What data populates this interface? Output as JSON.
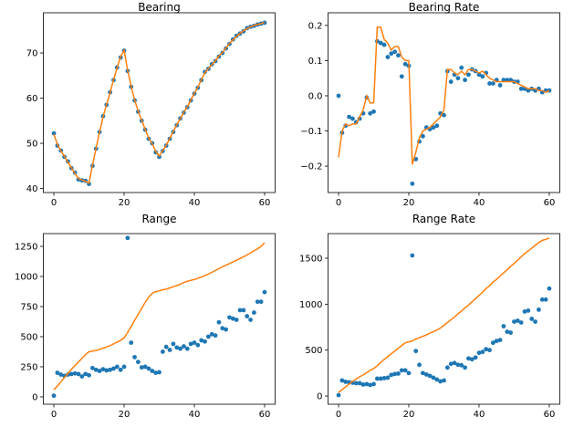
{
  "chart_data": [
    {
      "type": "scatter_line",
      "title": "Bearing",
      "x": [
        0,
        1,
        2,
        3,
        4,
        5,
        6,
        7,
        8,
        9,
        10,
        11,
        12,
        13,
        14,
        15,
        16,
        17,
        18,
        19,
        20,
        21,
        22,
        23,
        24,
        25,
        26,
        27,
        28,
        29,
        30,
        31,
        32,
        33,
        34,
        35,
        36,
        37,
        38,
        39,
        40,
        41,
        42,
        43,
        44,
        45,
        46,
        47,
        48,
        49,
        50,
        51,
        52,
        53,
        54,
        55,
        56,
        57,
        58,
        59,
        60
      ],
      "series": [
        {
          "kind": "scatter",
          "color": "#1f77b4",
          "values": [
            52.2,
            49.5,
            48.4,
            47,
            46,
            44.5,
            43.5,
            42,
            41.8,
            41.7,
            41,
            45,
            48.8,
            52.5,
            56,
            58.5,
            61.3,
            64,
            66.8,
            69,
            70.5,
            66,
            62.5,
            59.5,
            57,
            55,
            53,
            51,
            50,
            48,
            47,
            48.3,
            49.5,
            51,
            52.5,
            54,
            55.5,
            56.8,
            58,
            59.5,
            61,
            62.3,
            64,
            65.8,
            66.5,
            67.5,
            68.2,
            69.2,
            70,
            71,
            72,
            73,
            73.8,
            74.3,
            74.8,
            75.5,
            75.8,
            76,
            76.3,
            76.5,
            76.7
          ]
        },
        {
          "kind": "line",
          "color": "#ff7f0e",
          "values": [
            52,
            49.8,
            48.3,
            47.1,
            45.8,
            44.6,
            43.3,
            42.2,
            41.9,
            41.6,
            41.2,
            45.2,
            48.9,
            52.4,
            55.8,
            58.6,
            61.2,
            64.1,
            66.7,
            69.2,
            70.6,
            66.2,
            62.6,
            59.6,
            57.1,
            55.1,
            53.1,
            51.2,
            49.9,
            48.2,
            47.2,
            48.4,
            49.6,
            51.1,
            52.6,
            54.1,
            55.4,
            56.9,
            58.1,
            59.6,
            61.1,
            62.4,
            64.1,
            65.6,
            66.6,
            67.4,
            68.3,
            69.3,
            70.1,
            71.1,
            72.1,
            72.9,
            73.7,
            74.3,
            74.9,
            75.4,
            75.8,
            76.1,
            76.3,
            76.5,
            76.8
          ]
        }
      ],
      "xlim": [
        -3,
        63
      ],
      "xticks": [
        0,
        20,
        40,
        60
      ],
      "ylim": [
        39.1,
        78.9
      ],
      "yticks": [
        40,
        50,
        60,
        70
      ]
    },
    {
      "type": "scatter_line",
      "title": "Bearing Rate",
      "x": [
        0,
        1,
        2,
        3,
        4,
        5,
        6,
        7,
        8,
        9,
        10,
        11,
        12,
        13,
        14,
        15,
        16,
        17,
        18,
        19,
        20,
        21,
        22,
        23,
        24,
        25,
        26,
        27,
        28,
        29,
        30,
        31,
        32,
        33,
        34,
        35,
        36,
        37,
        38,
        39,
        40,
        41,
        42,
        43,
        44,
        45,
        46,
        47,
        48,
        49,
        50,
        51,
        52,
        53,
        54,
        55,
        56,
        57,
        58,
        59,
        60
      ],
      "series": [
        {
          "kind": "scatter",
          "color": "#1f77b4",
          "values": [
            0.0,
            -0.105,
            -0.085,
            -0.06,
            -0.065,
            -0.075,
            -0.065,
            -0.05,
            -0.005,
            -0.05,
            -0.045,
            0.155,
            0.15,
            0.145,
            0.11,
            0.12,
            0.125,
            0.115,
            0.055,
            0.09,
            0.085,
            -0.25,
            -0.18,
            -0.13,
            -0.115,
            -0.09,
            -0.095,
            -0.09,
            -0.085,
            -0.05,
            -0.055,
            0.07,
            0.04,
            0.06,
            0.05,
            0.08,
            0.045,
            0.06,
            0.075,
            0.07,
            0.06,
            0.055,
            0.065,
            0.035,
            0.035,
            0.045,
            0.03,
            0.045,
            0.045,
            0.045,
            0.04,
            0.04,
            0.02,
            0.02,
            0.015,
            0.02,
            0.015,
            0.02,
            0.01,
            0.015,
            0.015
          ]
        },
        {
          "kind": "line",
          "color": "#ff7f0e",
          "values": [
            -0.175,
            -0.1,
            -0.08,
            -0.085,
            -0.08,
            -0.08,
            -0.06,
            -0.04,
            0.0,
            -0.02,
            -0.02,
            0.195,
            0.195,
            0.16,
            0.15,
            0.13,
            0.14,
            0.14,
            0.11,
            0.1,
            0.1,
            -0.195,
            -0.16,
            -0.12,
            -0.1,
            -0.095,
            -0.09,
            -0.08,
            -0.07,
            -0.06,
            -0.04,
            0.075,
            0.075,
            0.065,
            0.06,
            0.07,
            0.06,
            0.075,
            0.075,
            0.07,
            0.065,
            0.07,
            0.06,
            0.05,
            0.045,
            0.04,
            0.04,
            0.04,
            0.04,
            0.04,
            0.04,
            0.035,
            0.03,
            0.025,
            0.02,
            0.02,
            0.02,
            0.015,
            0.015,
            0.01,
            0.015
          ]
        }
      ],
      "xlim": [
        -3,
        63
      ],
      "xticks": [
        0,
        20,
        40,
        60
      ],
      "ylim": [
        -0.275,
        0.236
      ],
      "yticks": [
        {
          "value": -0.2,
          "label": "−0.2"
        },
        {
          "value": -0.1,
          "label": "−0.1"
        },
        {
          "value": 0,
          "label": "0.0"
        },
        0.1,
        0.2
      ]
    },
    {
      "type": "scatter_line",
      "title": "Range",
      "x": [
        0,
        1,
        2,
        3,
        4,
        5,
        6,
        7,
        8,
        9,
        10,
        11,
        12,
        13,
        14,
        15,
        16,
        17,
        18,
        19,
        20,
        21,
        22,
        23,
        24,
        25,
        26,
        27,
        28,
        29,
        30,
        31,
        32,
        33,
        34,
        35,
        36,
        37,
        38,
        39,
        40,
        41,
        42,
        43,
        44,
        45,
        46,
        47,
        48,
        49,
        50,
        51,
        52,
        53,
        54,
        55,
        56,
        57,
        58,
        59,
        60
      ],
      "series": [
        {
          "kind": "scatter",
          "color": "#1f77b4",
          "values": [
            10,
            200,
            185,
            175,
            185,
            190,
            195,
            190,
            170,
            190,
            180,
            240,
            225,
            215,
            230,
            220,
            225,
            235,
            250,
            225,
            250,
            1320,
            450,
            330,
            290,
            245,
            250,
            235,
            215,
            200,
            205,
            375,
            415,
            390,
            440,
            410,
            400,
            420,
            400,
            440,
            450,
            430,
            470,
            460,
            500,
            520,
            510,
            620,
            570,
            560,
            660,
            650,
            640,
            720,
            720,
            670,
            640,
            700,
            790,
            790,
            870
          ]
        },
        {
          "kind": "line",
          "color": "#ff7f0e",
          "values": [
            60,
            90,
            125,
            160,
            195,
            230,
            260,
            290,
            320,
            350,
            375,
            380,
            385,
            395,
            405,
            415,
            425,
            440,
            455,
            470,
            490,
            535,
            585,
            635,
            685,
            735,
            785,
            830,
            860,
            875,
            880,
            890,
            895,
            905,
            915,
            925,
            935,
            950,
            960,
            968,
            975,
            985,
            995,
            1008,
            1020,
            1035,
            1050,
            1065,
            1080,
            1093,
            1107,
            1121,
            1135,
            1150,
            1163,
            1180,
            1195,
            1213,
            1230,
            1250,
            1280
          ]
        }
      ],
      "xlim": [
        -3,
        63
      ],
      "xticks": [
        0,
        20,
        40,
        60
      ],
      "ylim": [
        -61,
        1356
      ],
      "yticks": [
        0,
        250,
        500,
        750,
        1000,
        1250
      ]
    },
    {
      "type": "scatter_line",
      "title": "Range Rate",
      "x": [
        0,
        1,
        2,
        3,
        4,
        5,
        6,
        7,
        8,
        9,
        10,
        11,
        12,
        13,
        14,
        15,
        16,
        17,
        18,
        19,
        20,
        21,
        22,
        23,
        24,
        25,
        26,
        27,
        28,
        29,
        30,
        31,
        32,
        33,
        34,
        35,
        36,
        37,
        38,
        39,
        40,
        41,
        42,
        43,
        44,
        45,
        46,
        47,
        48,
        49,
        50,
        51,
        52,
        53,
        54,
        55,
        56,
        57,
        58,
        59,
        60
      ],
      "series": [
        {
          "kind": "scatter",
          "color": "#1f77b4",
          "values": [
            10,
            170,
            155,
            150,
            145,
            140,
            140,
            125,
            130,
            120,
            130,
            190,
            190,
            195,
            200,
            230,
            240,
            245,
            280,
            280,
            250,
            1530,
            490,
            340,
            250,
            235,
            220,
            200,
            180,
            160,
            170,
            310,
            350,
            360,
            340,
            335,
            310,
            410,
            400,
            420,
            470,
            480,
            510,
            500,
            580,
            600,
            610,
            760,
            700,
            690,
            810,
            820,
            800,
            920,
            930,
            840,
            810,
            940,
            1050,
            1050,
            1170
          ]
        },
        {
          "kind": "line",
          "color": "#ff7f0e",
          "values": [
            40,
            70,
            100,
            130,
            160,
            185,
            210,
            230,
            255,
            280,
            300,
            330,
            365,
            400,
            430,
            460,
            490,
            520,
            550,
            580,
            590,
            600,
            620,
            635,
            650,
            665,
            685,
            700,
            720,
            740,
            770,
            800,
            830,
            860,
            895,
            925,
            960,
            990,
            1025,
            1060,
            1095,
            1130,
            1170,
            1200,
            1240,
            1270,
            1305,
            1340,
            1375,
            1410,
            1445,
            1480,
            1515,
            1550,
            1580,
            1610,
            1640,
            1670,
            1695,
            1705,
            1720
          ]
        }
      ],
      "xlim": [
        -3,
        63
      ],
      "xticks": [
        0,
        20,
        40,
        60
      ],
      "ylim": [
        -89,
        1768
      ],
      "yticks": [
        0,
        500,
        1000,
        1500
      ]
    }
  ]
}
